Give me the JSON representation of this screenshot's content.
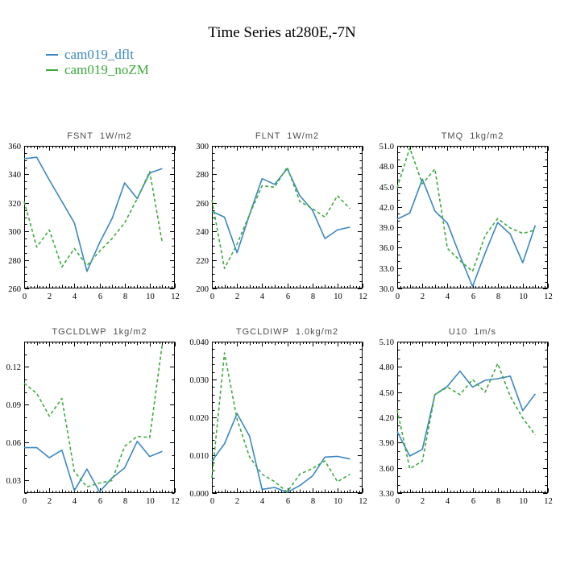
{
  "page": {
    "title": "Time Series at280E,-7N"
  },
  "legend": {
    "position": "top-left",
    "items": [
      {
        "label": "cam019_dflt",
        "color": "#3a87c2",
        "style": "solid"
      },
      {
        "label": "cam019_noZM",
        "color": "#3cab3c",
        "style": "dashed"
      }
    ]
  },
  "chart_data": [
    {
      "type": "line",
      "title": "FSNT  1W/m2",
      "name": "FSNT",
      "units": "1W/m2",
      "x": [
        0,
        1,
        2,
        3,
        4,
        5,
        6,
        7,
        8,
        9,
        10,
        11
      ],
      "series": [
        {
          "name": "cam019_dflt",
          "values": [
            351,
            352,
            336,
            321,
            306,
            272,
            292,
            309,
            334,
            323,
            341,
            344
          ]
        },
        {
          "name": "cam019_noZM",
          "values": [
            321,
            289,
            301,
            275,
            288,
            276,
            286,
            295,
            306,
            323,
            342,
            292
          ]
        }
      ],
      "xlim": [
        0,
        12
      ],
      "xtick": 2,
      "xminor": 0.25,
      "ylim": [
        260,
        360
      ],
      "ytick": 20,
      "yminor": 5,
      "ydecimals": 0
    },
    {
      "type": "line",
      "title": "FLNT  1W/m2",
      "name": "FLNT",
      "units": "1W/m2",
      "x": [
        0,
        1,
        2,
        3,
        4,
        5,
        6,
        7,
        8,
        9,
        10,
        11
      ],
      "series": [
        {
          "name": "cam019_dflt",
          "values": [
            254,
            250,
            225,
            252,
            277,
            273,
            284,
            265,
            255,
            235,
            241,
            243
          ]
        },
        {
          "name": "cam019_noZM",
          "values": [
            262,
            214,
            231,
            252,
            272,
            271,
            285,
            261,
            256,
            250,
            265,
            256
          ]
        }
      ],
      "xlim": [
        0,
        12
      ],
      "xtick": 2,
      "xminor": 0.25,
      "ylim": [
        200,
        300
      ],
      "ytick": 20,
      "yminor": 5,
      "ydecimals": 0
    },
    {
      "type": "line",
      "title": "TMQ  1kg/m2",
      "name": "TMQ",
      "units": "1kg/m2",
      "x": [
        0,
        1,
        2,
        3,
        4,
        5,
        6,
        7,
        8,
        9,
        10,
        11
      ],
      "series": [
        {
          "name": "cam019_dflt",
          "values": [
            40.2,
            41.1,
            46.1,
            41.4,
            39.6,
            34.8,
            30.3,
            35.2,
            39.7,
            38.0,
            33.8,
            39.3
          ]
        },
        {
          "name": "cam019_noZM",
          "values": [
            44.8,
            50.7,
            45.4,
            47.6,
            35.9,
            34.1,
            32.5,
            37.8,
            40.3,
            38.9,
            38.1,
            38.6
          ]
        }
      ],
      "xlim": [
        0,
        12
      ],
      "xtick": 2,
      "xminor": 0.25,
      "ylim": [
        30.0,
        51.0
      ],
      "ytick": 3,
      "yminor": 1,
      "ydecimals": 1
    },
    {
      "type": "line",
      "title": "TGCLDLWP  1kg/m2",
      "name": "TGCLDLWP",
      "units": "1kg/m2",
      "x": [
        0,
        1,
        2,
        3,
        4,
        5,
        6,
        7,
        8,
        9,
        10,
        11
      ],
      "series": [
        {
          "name": "cam019_dflt",
          "values": [
            0.056,
            0.056,
            0.048,
            0.054,
            0.022,
            0.039,
            0.021,
            0.032,
            0.04,
            0.061,
            0.049,
            0.053
          ]
        },
        {
          "name": "cam019_noZM",
          "values": [
            0.107,
            0.099,
            0.081,
            0.095,
            0.037,
            0.025,
            0.028,
            0.03,
            0.057,
            0.065,
            0.064,
            0.138
          ]
        }
      ],
      "xlim": [
        0,
        12
      ],
      "xtick": 2,
      "xminor": 0.25,
      "ylim": [
        0.02,
        0.14
      ],
      "ytick": 0.03,
      "yminor": 0.01,
      "ydecimals": 2
    },
    {
      "type": "line",
      "title": "TGCLDIWP  1.0kg/m2",
      "name": "TGCLDIWP",
      "units": "1.0kg/m2",
      "x": [
        0,
        1,
        2,
        3,
        4,
        5,
        6,
        7,
        8,
        9,
        10,
        11
      ],
      "series": [
        {
          "name": "cam019_dflt",
          "values": [
            0.0085,
            0.013,
            0.021,
            0.015,
            0.001,
            0.0015,
            0.0002,
            0.002,
            0.0045,
            0.0095,
            0.0097,
            0.009
          ]
        },
        {
          "name": "cam019_noZM",
          "values": [
            0.004,
            0.037,
            0.0195,
            0.0095,
            0.005,
            0.003,
            0.0003,
            0.005,
            0.0065,
            0.0085,
            0.003,
            0.005
          ]
        }
      ],
      "xlim": [
        0,
        12
      ],
      "xtick": 2,
      "xminor": 0.25,
      "ylim": [
        0.0,
        0.04
      ],
      "ytick": 0.01,
      "yminor": 0.002,
      "ydecimals": 3
    },
    {
      "type": "line",
      "title": "U10  1m/s",
      "name": "U10",
      "units": "1m/s",
      "x": [
        0,
        1,
        2,
        3,
        4,
        5,
        6,
        7,
        8,
        9,
        10,
        11
      ],
      "series": [
        {
          "name": "cam019_dflt",
          "values": [
            4.03,
            3.74,
            3.82,
            4.47,
            4.57,
            4.75,
            4.56,
            4.64,
            4.66,
            4.69,
            4.28,
            4.48
          ]
        },
        {
          "name": "cam019_noZM",
          "values": [
            4.29,
            3.59,
            3.68,
            4.47,
            4.56,
            4.47,
            4.65,
            4.5,
            4.84,
            4.45,
            4.19,
            3.99
          ]
        }
      ],
      "xlim": [
        0,
        12
      ],
      "xtick": 2,
      "xminor": 0.25,
      "ylim": [
        3.3,
        5.1
      ],
      "ytick": 0.3,
      "yminor": 0.1,
      "ydecimals": 2
    }
  ]
}
